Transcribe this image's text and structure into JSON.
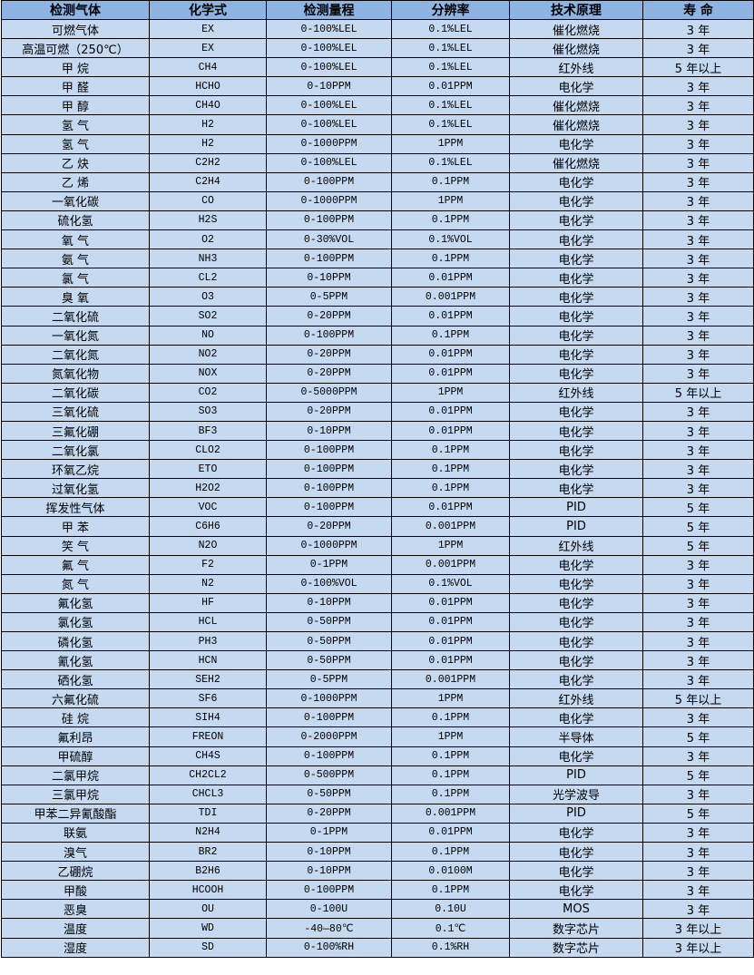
{
  "colors": {
    "header_bg": "#8DB4E2",
    "row_bg": "#C5D9F1",
    "border": "#000000"
  },
  "headers": [
    "检测气体",
    "化学式",
    "检测量程",
    "分辨率",
    "技术原理",
    "寿 命"
  ],
  "rows": [
    [
      "可燃气体",
      "EX",
      "0-100%LEL",
      "0.1%LEL",
      "催化燃烧",
      "3 年"
    ],
    [
      "高温可燃（250℃）",
      "EX",
      "0-100%LEL",
      "0.1%LEL",
      "催化燃烧",
      "3 年"
    ],
    [
      "甲 烷",
      "CH4",
      "0-100%LEL",
      "0.1%LEL",
      "红外线",
      "5 年以上"
    ],
    [
      "甲 醛",
      "HCHO",
      "0-10PPM",
      "0.01PPM",
      "电化学",
      "3 年"
    ],
    [
      "甲 醇",
      "CH4O",
      "0-100%LEL",
      "0.1%LEL",
      "催化燃烧",
      "3 年"
    ],
    [
      "氢 气",
      "H2",
      "0-100%LEL",
      "0.1%LEL",
      "催化燃烧",
      "3 年"
    ],
    [
      "氢 气",
      "H2",
      "0-1000PPM",
      "1PPM",
      "电化学",
      "3 年"
    ],
    [
      "乙 炔",
      "C2H2",
      "0-100%LEL",
      "0.1%LEL",
      "催化燃烧",
      "3 年"
    ],
    [
      "乙 烯",
      "C2H4",
      "0-100PPM",
      "0.1PPM",
      "电化学",
      "3 年"
    ],
    [
      "一氧化碳",
      "CO",
      "0-1000PPM",
      "1PPM",
      "电化学",
      "3 年"
    ],
    [
      "硫化氢",
      "H2S",
      "0-100PPM",
      "0.1PPM",
      "电化学",
      "3 年"
    ],
    [
      "氧 气",
      "O2",
      "0-30%VOL",
      "0.1%VOL",
      "电化学",
      "3 年"
    ],
    [
      "氨 气",
      "NH3",
      "0-100PPM",
      "0.1PPM",
      "电化学",
      "3 年"
    ],
    [
      "氯 气",
      "CL2",
      "0-10PPM",
      "0.01PPM",
      "电化学",
      "3 年"
    ],
    [
      "臭 氧",
      "O3",
      "0-5PPM",
      "0.001PPM",
      "电化学",
      "3 年"
    ],
    [
      "二氧化硫",
      "SO2",
      "0-20PPM",
      "0.01PPM",
      "电化学",
      "3 年"
    ],
    [
      "一氧化氮",
      "NO",
      "0-100PPM",
      "0.1PPM",
      "电化学",
      "3 年"
    ],
    [
      "二氧化氮",
      "NO2",
      "0-20PPM",
      "0.01PPM",
      "电化学",
      "3 年"
    ],
    [
      "氮氧化物",
      "NOX",
      "0-20PPM",
      "0.01PPM",
      "电化学",
      "3 年"
    ],
    [
      "二氧化碳",
      "CO2",
      "0-5000PPM",
      "1PPM",
      "红外线",
      "5 年以上"
    ],
    [
      "三氧化硫",
      "SO3",
      "0-20PPM",
      "0.01PPM",
      "电化学",
      "3 年"
    ],
    [
      "三氟化硼",
      "BF3",
      "0-10PPM",
      "0.01PPM",
      "电化学",
      "3 年"
    ],
    [
      "二氧化氯",
      "CLO2",
      "0-100PPM",
      "0.1PPM",
      "电化学",
      "3 年"
    ],
    [
      "环氧乙烷",
      "ETO",
      "0-100PPM",
      "0.1PPM",
      "电化学",
      "3 年"
    ],
    [
      "过氧化氢",
      "H2O2",
      "0-100PPM",
      "0.1PPM",
      "电化学",
      "3 年"
    ],
    [
      "挥发性气体",
      "VOC",
      "0-100PPM",
      "0.01PPM",
      "PID",
      "5 年"
    ],
    [
      "甲 苯",
      "C6H6",
      "0-20PPM",
      "0.001PPM",
      "PID",
      "5 年"
    ],
    [
      "笑 气",
      "N2O",
      "0-1000PPM",
      "1PPM",
      "红外线",
      "5 年"
    ],
    [
      "氟 气",
      "F2",
      "0-1PPM",
      "0.001PPM",
      "电化学",
      "3 年"
    ],
    [
      "氮 气",
      "N2",
      "0-100%VOL",
      "0.1%VOL",
      "电化学",
      "3 年"
    ],
    [
      "氟化氢",
      "HF",
      "0-10PPM",
      "0.01PPM",
      "电化学",
      "3 年"
    ],
    [
      "氯化氢",
      "HCL",
      "0-50PPM",
      "0.01PPM",
      "电化学",
      "3 年"
    ],
    [
      "磷化氢",
      "PH3",
      "0-50PPM",
      "0.01PPM",
      "电化学",
      "3 年"
    ],
    [
      "氰化氢",
      "HCN",
      "0-50PPM",
      "0.01PPM",
      "电化学",
      "3 年"
    ],
    [
      "硒化氢",
      "SEH2",
      "0-5PPM",
      "0.001PPM",
      "电化学",
      "3 年"
    ],
    [
      "六氟化硫",
      "SF6",
      "0-1000PPM",
      "1PPM",
      "红外线",
      "5 年以上"
    ],
    [
      "硅 烷",
      "SIH4",
      "0-100PPM",
      "0.1PPM",
      "电化学",
      "3 年"
    ],
    [
      "氟利昂",
      "FREON",
      "0-2000PPM",
      "1PPM",
      "半导体",
      "5 年"
    ],
    [
      "甲硫醇",
      "CH4S",
      "0-100PPM",
      "0.1PPM",
      "电化学",
      "3 年"
    ],
    [
      "二氯甲烷",
      "CH2CL2",
      "0-500PPM",
      "0.1PPM",
      "PID",
      "5 年"
    ],
    [
      "三氯甲烷",
      "CHCL3",
      "0-50PPM",
      "0.1PPM",
      "光学波导",
      "3 年"
    ],
    [
      "甲苯二异氰酸酯",
      "TDI",
      "0-20PPM",
      "0.001PPM",
      "PID",
      "5 年"
    ],
    [
      "联氨",
      "N2H4",
      "0-1PPM",
      "0.01PPM",
      "电化学",
      "3 年"
    ],
    [
      "溴气",
      "BR2",
      "0-10PPM",
      "0.1PPM",
      "电化学",
      "3 年"
    ],
    [
      "乙硼烷",
      "B2H6",
      "0-10PPM",
      "0.0100M",
      "电化学",
      "3 年"
    ],
    [
      "甲酸",
      "HCOOH",
      "0-100PPM",
      "0.1PPM",
      "电化学",
      "3 年"
    ],
    [
      "恶臭",
      "OU",
      "0-100U",
      "0.10U",
      "MOS",
      "3 年"
    ],
    [
      "温度",
      "WD",
      "-40—80℃",
      "0.1℃",
      "数字芯片",
      "3 年以上"
    ],
    [
      "湿度",
      "SD",
      "0-100%RH",
      "0.1%RH",
      "数字芯片",
      "3 年以上"
    ]
  ]
}
